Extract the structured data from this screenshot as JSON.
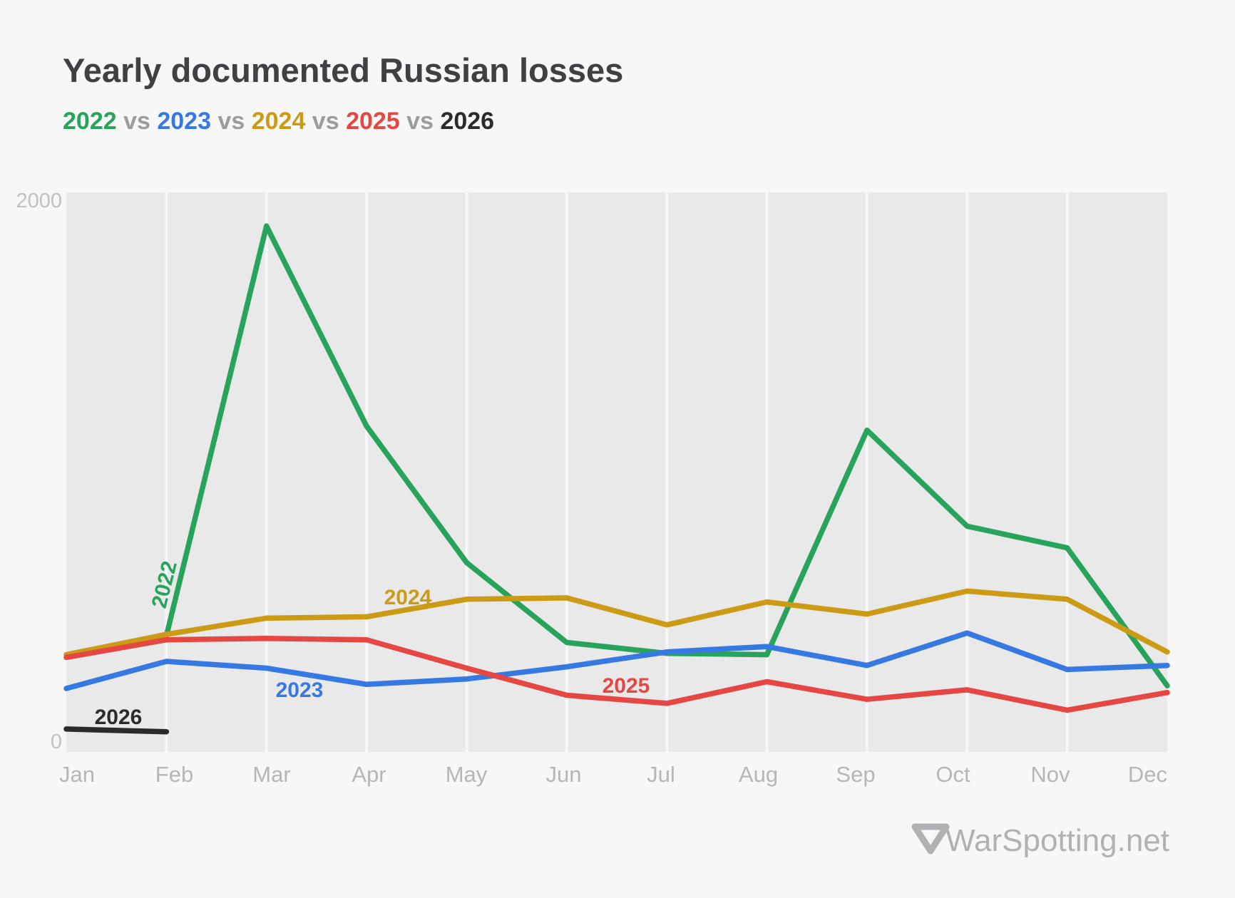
{
  "title": "Yearly documented Russian losses",
  "legend": {
    "separator": " vs ",
    "items": [
      {
        "label": "2022",
        "color": "#28a35c"
      },
      {
        "label": "2023",
        "color": "#3679e2"
      },
      {
        "label": "2024",
        "color": "#cb9b16"
      },
      {
        "label": "2025",
        "color": "#e54843"
      },
      {
        "label": "2026",
        "color": "#2b2b2b"
      }
    ]
  },
  "watermark": {
    "icon": "▽",
    "text": "WarSpotting.net",
    "color": "#b0b1b4"
  },
  "chart_data": {
    "type": "line",
    "title": "Yearly documented Russian losses",
    "subtitle": "2022 vs 2023 vs 2024 vs 2025 vs 2026",
    "x_labels": [
      "Jan",
      "Feb",
      "Mar",
      "Apr",
      "May",
      "Jun",
      "Jul",
      "Aug",
      "Sep",
      "Oct",
      "Nov",
      "Dec"
    ],
    "ylim": [
      0,
      2000
    ],
    "y_ticks": [
      {
        "label": "2000",
        "value": 2000
      },
      {
        "label": "0",
        "value": 0
      }
    ],
    "grid": "vertical monthly gridlines, light plot background",
    "legend_position": "top subtitle, inline colored year labels",
    "series": [
      {
        "name": "2022",
        "color": "#28a35c",
        "values": [
          null,
          390,
          1905,
          1165,
          660,
          365,
          325,
          320,
          1150,
          795,
          715,
          205
        ]
      },
      {
        "name": "2023",
        "color": "#3679e2",
        "values": [
          195,
          295,
          270,
          210,
          230,
          275,
          330,
          350,
          280,
          400,
          265,
          280
        ]
      },
      {
        "name": "2024",
        "color": "#cb9b16",
        "values": [
          320,
          395,
          455,
          460,
          525,
          530,
          430,
          515,
          470,
          555,
          525,
          330
        ]
      },
      {
        "name": "2025",
        "color": "#e54843",
        "values": [
          310,
          375,
          380,
          375,
          270,
          170,
          140,
          220,
          155,
          190,
          115,
          180
        ]
      },
      {
        "name": "2026",
        "color": "#2b2b2b",
        "values": [
          45,
          35,
          null,
          null,
          null,
          null,
          null,
          null,
          null,
          null,
          null,
          null
        ]
      }
    ]
  }
}
